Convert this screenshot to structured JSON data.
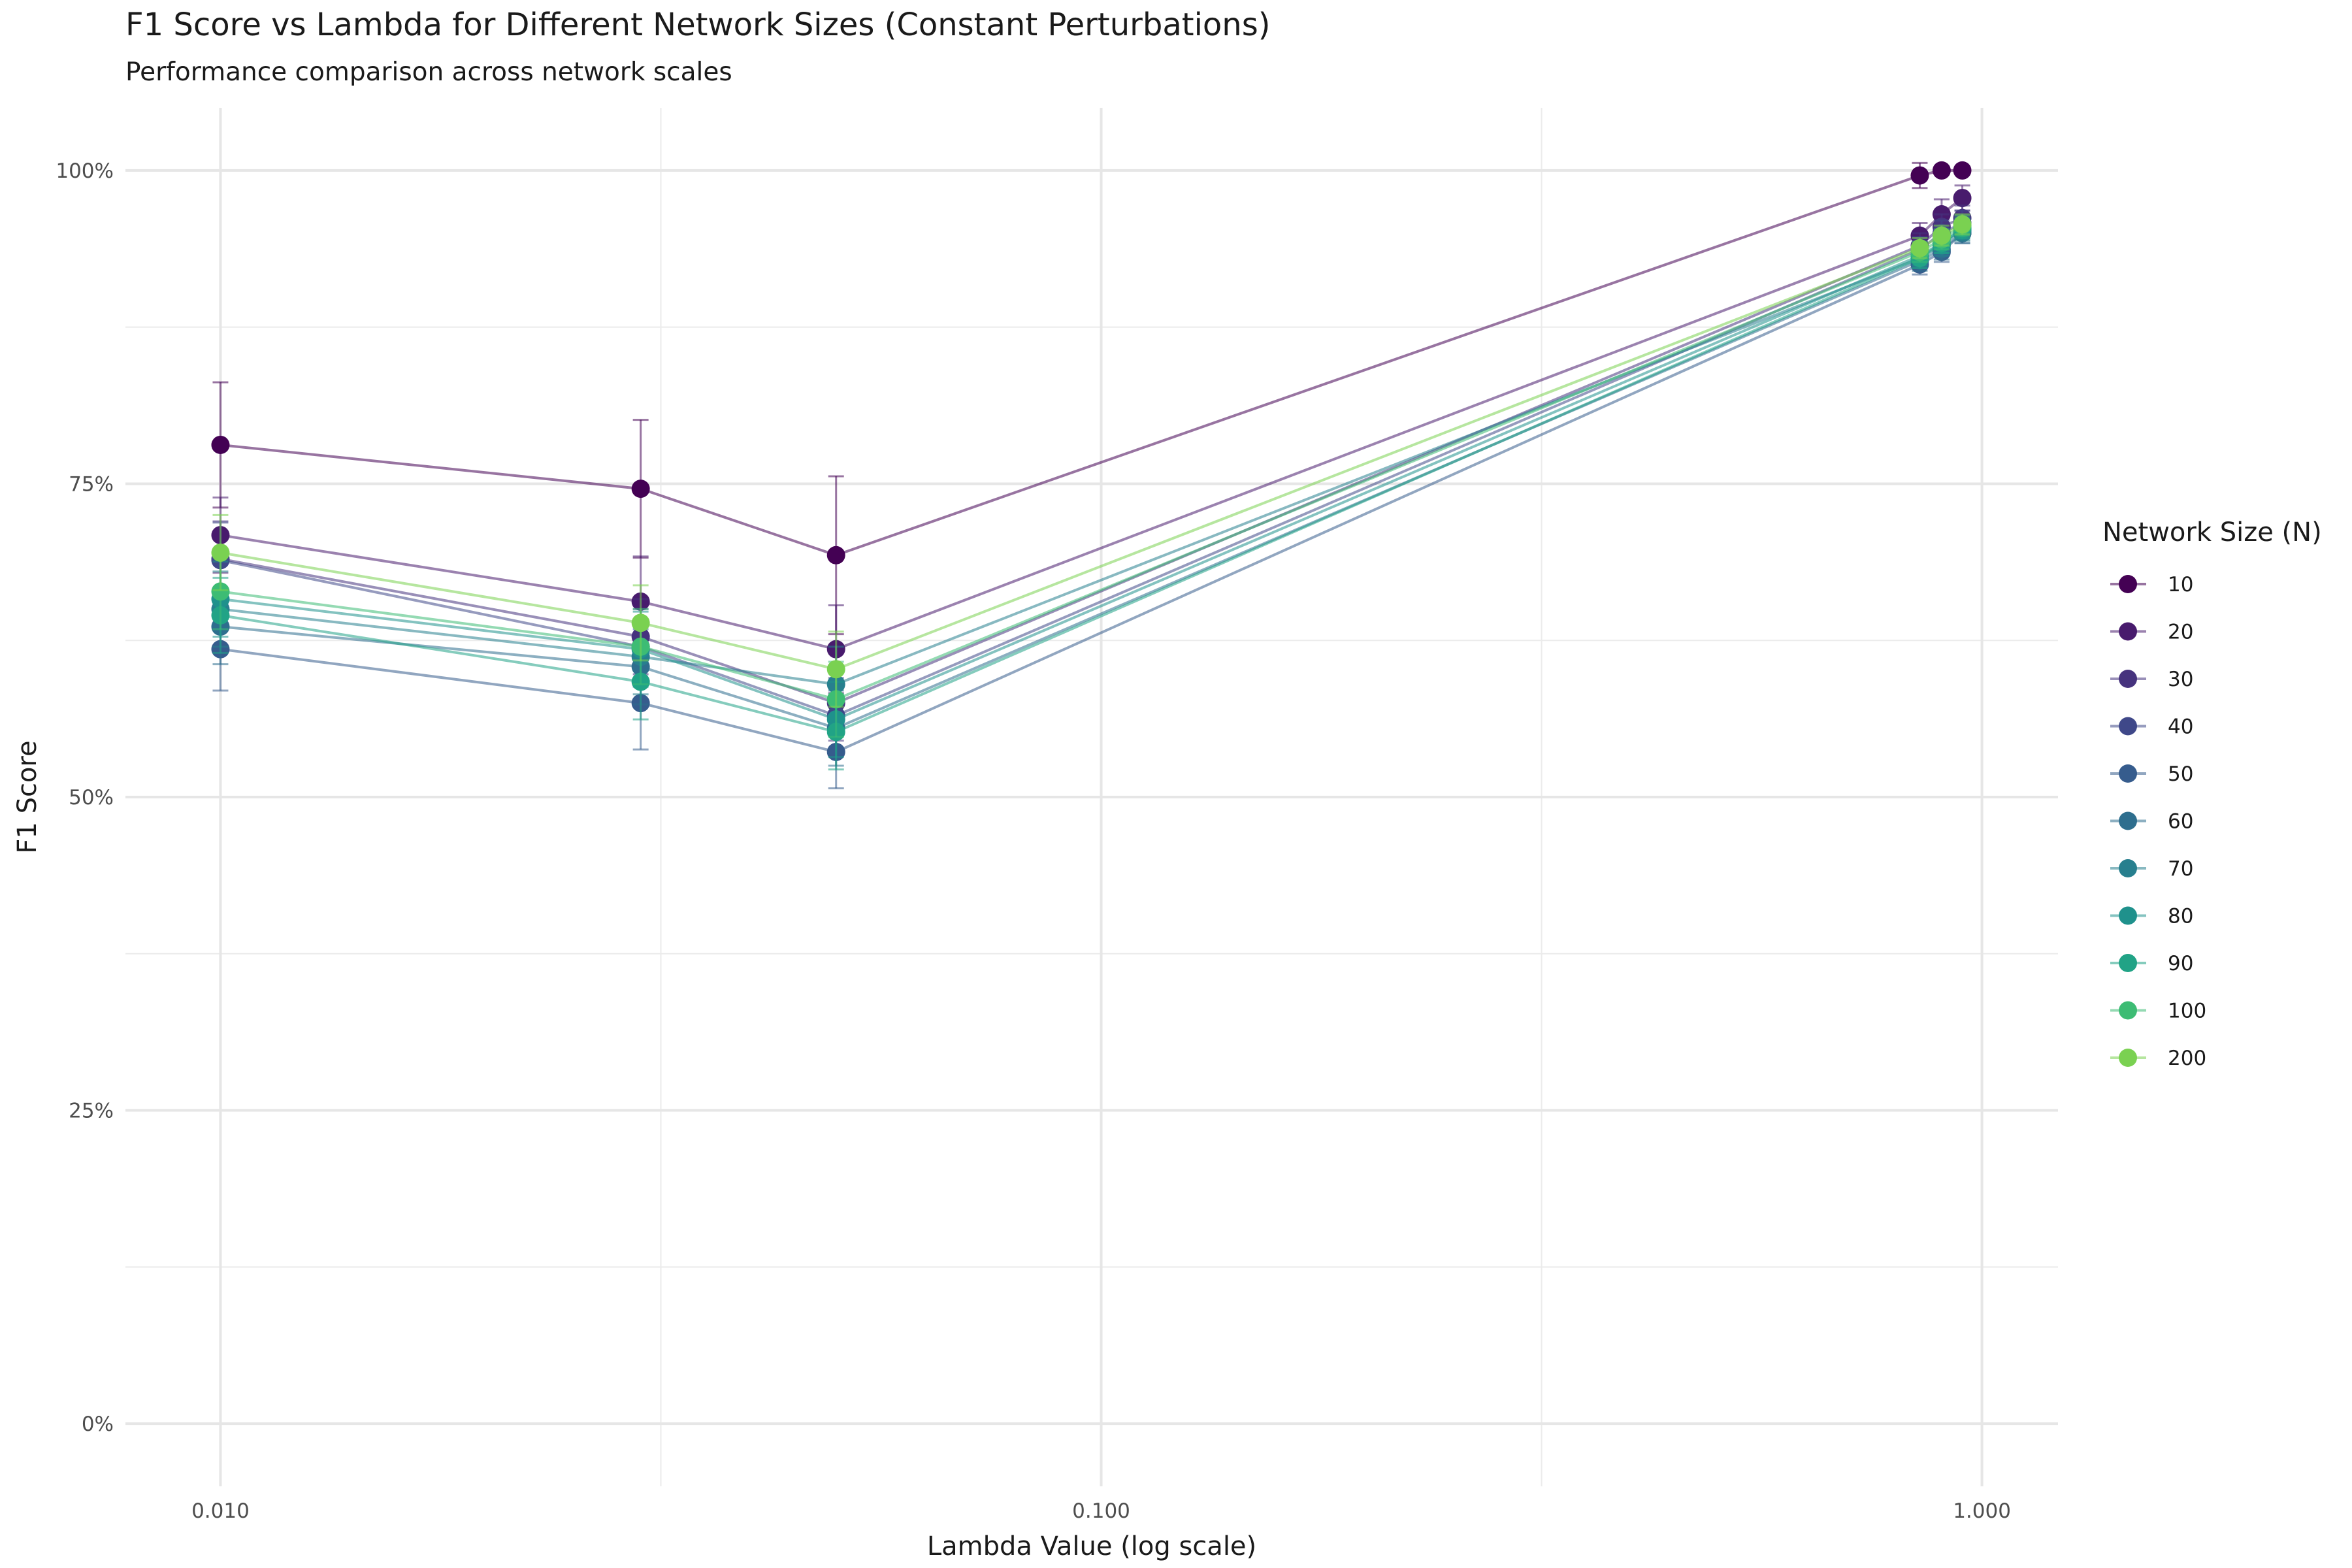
{
  "chart_data": {
    "type": "line",
    "title": "F1 Score vs Lambda for Different Network Sizes (Constant Perturbations)",
    "subtitle": "Performance comparison across network scales",
    "xlabel": "Lambda Value (log scale)",
    "ylabel": "F1 Score",
    "x_scale": "log",
    "xlim": [
      0.0078,
      1.22
    ],
    "ylim": [
      -0.05,
      1.05
    ],
    "x_ticks": [
      0.01,
      0.1,
      1.0
    ],
    "x_tick_labels": [
      "0.010",
      "0.100",
      "1.000"
    ],
    "y_ticks": [
      0,
      0.25,
      0.5,
      0.75,
      1.0
    ],
    "y_tick_labels": [
      "0%",
      "25%",
      "50%",
      "75%",
      "100%"
    ],
    "grid": true,
    "legend_title": "Network Size (N)",
    "legend_position": "right",
    "series": [
      {
        "name": "10",
        "color": "#440154",
        "x": [
          0.01,
          0.03,
          0.05,
          0.85,
          0.9,
          0.95
        ],
        "y": [
          0.781,
          0.746,
          0.693,
          0.996,
          1.0,
          1.0
        ],
        "err": [
          0.05,
          0.055,
          0.063,
          0.01,
          0.0,
          0.0
        ]
      },
      {
        "name": "20",
        "color": "#481B6D",
        "x": [
          0.01,
          0.03,
          0.05,
          0.85,
          0.9,
          0.95
        ],
        "y": [
          0.709,
          0.656,
          0.618,
          0.948,
          0.965,
          0.978
        ],
        "err": [
          0.03,
          0.036,
          0.035,
          0.01,
          0.012,
          0.01
        ]
      },
      {
        "name": "30",
        "color": "#46337E",
        "x": [
          0.01,
          0.03,
          0.05,
          0.85,
          0.9,
          0.95
        ],
        "y": [
          0.69,
          0.628,
          0.575,
          0.94,
          0.955,
          0.962
        ],
        "err": [
          0.03,
          0.03,
          0.03,
          0.01,
          0.01,
          0.01
        ]
      },
      {
        "name": "40",
        "color": "#3F4889",
        "x": [
          0.01,
          0.03,
          0.05,
          0.85,
          0.9,
          0.95
        ],
        "y": [
          0.689,
          0.62,
          0.565,
          0.937,
          0.95,
          0.958
        ],
        "err": [
          0.03,
          0.03,
          0.03,
          0.01,
          0.01,
          0.01
        ]
      },
      {
        "name": "50",
        "color": "#365C8D",
        "x": [
          0.01,
          0.03,
          0.05,
          0.85,
          0.9,
          0.95
        ],
        "y": [
          0.618,
          0.575,
          0.536,
          0.925,
          0.935,
          0.95
        ],
        "err": [
          0.033,
          0.037,
          0.029,
          0.008,
          0.008,
          0.008
        ]
      },
      {
        "name": "60",
        "color": "#2E6E8E",
        "x": [
          0.01,
          0.03,
          0.05,
          0.85,
          0.9,
          0.95
        ],
        "y": [
          0.636,
          0.604,
          0.555,
          0.928,
          0.937,
          0.95
        ],
        "err": [
          0.03,
          0.03,
          0.03,
          0.008,
          0.008,
          0.008
        ]
      },
      {
        "name": "70",
        "color": "#277F8E",
        "x": [
          0.01,
          0.03,
          0.05,
          0.85,
          0.9,
          0.95
        ],
        "y": [
          0.65,
          0.612,
          0.59,
          0.93,
          0.94,
          0.952
        ],
        "err": [
          0.03,
          0.03,
          0.03,
          0.008,
          0.008,
          0.008
        ]
      },
      {
        "name": "80",
        "color": "#1F918C",
        "x": [
          0.01,
          0.03,
          0.05,
          0.85,
          0.9,
          0.95
        ],
        "y": [
          0.658,
          0.618,
          0.562,
          0.932,
          0.942,
          0.953
        ],
        "err": [
          0.03,
          0.03,
          0.03,
          0.008,
          0.008,
          0.008
        ]
      },
      {
        "name": "90",
        "color": "#21A386",
        "x": [
          0.01,
          0.03,
          0.05,
          0.85,
          0.9,
          0.95
        ],
        "y": [
          0.645,
          0.592,
          0.552,
          0.93,
          0.942,
          0.954
        ],
        "err": [
          0.03,
          0.03,
          0.03,
          0.008,
          0.008,
          0.008
        ]
      },
      {
        "name": "100",
        "color": "#3DBC74",
        "x": [
          0.01,
          0.03,
          0.05,
          0.85,
          0.9,
          0.95
        ],
        "y": [
          0.664,
          0.62,
          0.578,
          0.935,
          0.945,
          0.956
        ],
        "err": [
          0.03,
          0.03,
          0.03,
          0.008,
          0.008,
          0.008
        ]
      },
      {
        "name": "200",
        "color": "#7AD151",
        "x": [
          0.01,
          0.03,
          0.05,
          0.85,
          0.9,
          0.95
        ],
        "y": [
          0.695,
          0.639,
          0.602,
          0.938,
          0.948,
          0.957
        ],
        "err": [
          0.03,
          0.03,
          0.03,
          0.008,
          0.008,
          0.008
        ]
      }
    ]
  }
}
